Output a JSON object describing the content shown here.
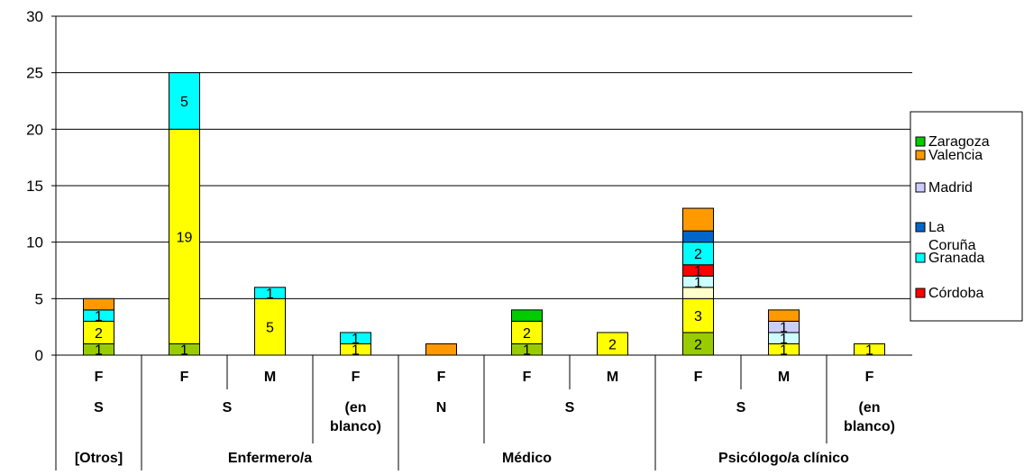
{
  "chart_data": {
    "type": "bar",
    "stacked": true,
    "ylim": [
      0,
      30
    ],
    "yticks": [
      0,
      5,
      10,
      15,
      20,
      25,
      30
    ],
    "grid": true,
    "legend_position": "right",
    "categories": [
      {
        "sexo": "F",
        "estado": "S",
        "profesion": "[Otros]"
      },
      {
        "sexo": "F",
        "estado": "S",
        "profesion": "Enfermero/a"
      },
      {
        "sexo": "M",
        "estado": "S",
        "profesion": "Enfermero/a"
      },
      {
        "sexo": "F",
        "estado": "(en blanco)",
        "profesion": "Enfermero/a"
      },
      {
        "sexo": "F",
        "estado": "N",
        "profesion": "Médico"
      },
      {
        "sexo": "F",
        "estado": "S",
        "profesion": "Médico"
      },
      {
        "sexo": "M",
        "estado": "S",
        "profesion": "Médico"
      },
      {
        "sexo": "F",
        "estado": "S",
        "profesion": "Psicólogo/a clínico"
      },
      {
        "sexo": "M",
        "estado": "S",
        "profesion": "Psicólogo/a clínico"
      },
      {
        "sexo": "F",
        "estado": "(en blanco)",
        "profesion": "Psicólogo/a clínico"
      }
    ],
    "axis_groups": {
      "estado": [
        {
          "label": "S",
          "span": [
            0,
            0
          ]
        },
        {
          "label": "S",
          "span": [
            1,
            2
          ]
        },
        {
          "label": "(en blanco)",
          "span": [
            3,
            3
          ]
        },
        {
          "label": "N",
          "span": [
            4,
            4
          ]
        },
        {
          "label": "S",
          "span": [
            5,
            6
          ]
        },
        {
          "label": "S",
          "span": [
            7,
            8
          ]
        },
        {
          "label": "(en blanco)",
          "span": [
            9,
            9
          ]
        }
      ],
      "profesion": [
        {
          "label": "[Otros]",
          "span": [
            0,
            0
          ]
        },
        {
          "label": "Enfermero/a",
          "span": [
            1,
            3
          ]
        },
        {
          "label": "Médico",
          "span": [
            4,
            6
          ]
        },
        {
          "label": "Psicólogo/a clínico",
          "span": [
            7,
            9
          ]
        }
      ]
    },
    "series": [
      {
        "name": "",
        "color": "#99cc00",
        "values": [
          1,
          1,
          0,
          0,
          0,
          1,
          0,
          2,
          0,
          0
        ]
      },
      {
        "name": "",
        "color": "#ffff00",
        "values": [
          2,
          19,
          5,
          1,
          0,
          2,
          2,
          3,
          1,
          1
        ]
      },
      {
        "name": "",
        "color": "#ffffcc",
        "values": [
          0,
          0,
          0,
          0,
          0,
          0,
          0,
          1,
          0,
          0
        ]
      },
      {
        "name": "",
        "color": "#ccffff",
        "values": [
          0,
          0,
          0,
          0,
          0,
          0,
          0,
          1,
          1,
          0
        ]
      },
      {
        "name": "Córdoba",
        "color": "#ff0000",
        "values": [
          0,
          0,
          0,
          0,
          0,
          0,
          0,
          1,
          0,
          0
        ]
      },
      {
        "name": "Granada",
        "color": "#00ffff",
        "values": [
          1,
          5,
          1,
          1,
          0,
          0,
          0,
          2,
          0,
          0
        ]
      },
      {
        "name": "La Coruña",
        "color": "#0066cc",
        "values": [
          0,
          0,
          0,
          0,
          0,
          0,
          0,
          1,
          0,
          0
        ]
      },
      {
        "name": "Madrid",
        "color": "#ccccff",
        "values": [
          0,
          0,
          0,
          0,
          0,
          0,
          0,
          0,
          1,
          0
        ]
      },
      {
        "name": "Valencia",
        "color": "#ff9900",
        "values": [
          1,
          0,
          0,
          0,
          1,
          0,
          0,
          2,
          1,
          0
        ]
      },
      {
        "name": "Zaragoza",
        "color": "#00cc00",
        "values": [
          0,
          0,
          0,
          0,
          0,
          1,
          0,
          0,
          0,
          0
        ]
      }
    ],
    "data_labels": [
      [
        "1",
        "2",
        "",
        "",
        "",
        "1",
        "",
        "",
        "",
        "1"
      ],
      [
        "1",
        "19",
        "",
        "",
        "",
        "5",
        "",
        "",
        "",
        ""
      ],
      [
        "",
        "5",
        "",
        "",
        "",
        "1",
        "",
        "",
        "",
        ""
      ],
      [
        "",
        "1",
        "",
        "",
        "",
        "1",
        "",
        "",
        "",
        ""
      ],
      [
        "",
        "",
        "",
        "",
        "",
        "",
        "",
        "",
        "",
        "1"
      ],
      [
        "1",
        "2",
        "",
        "",
        "",
        "",
        "",
        "",
        "",
        ""
      ],
      [
        "",
        "2",
        "",
        "",
        "",
        "",
        "",
        "",
        "",
        ""
      ],
      [
        "2",
        "3",
        "",
        "1",
        "1",
        "2",
        "",
        "",
        "",
        "2"
      ],
      [
        "",
        "1",
        "",
        "1",
        "",
        "",
        "",
        "1",
        "",
        "1"
      ],
      [
        "",
        "1",
        "",
        "",
        "",
        "",
        "",
        "",
        "",
        ""
      ]
    ],
    "legend": [
      {
        "label": "Zaragoza",
        "color": "#00cc00"
      },
      {
        "label": "Valencia",
        "color": "#ff9900"
      },
      {
        "label": "Madrid",
        "color": "#ccccff"
      },
      {
        "label": "La Coruña",
        "color": "#0066cc"
      },
      {
        "label": "Granada",
        "color": "#00ffff"
      },
      {
        "label": "Córdoba",
        "color": "#ff0000"
      }
    ]
  }
}
